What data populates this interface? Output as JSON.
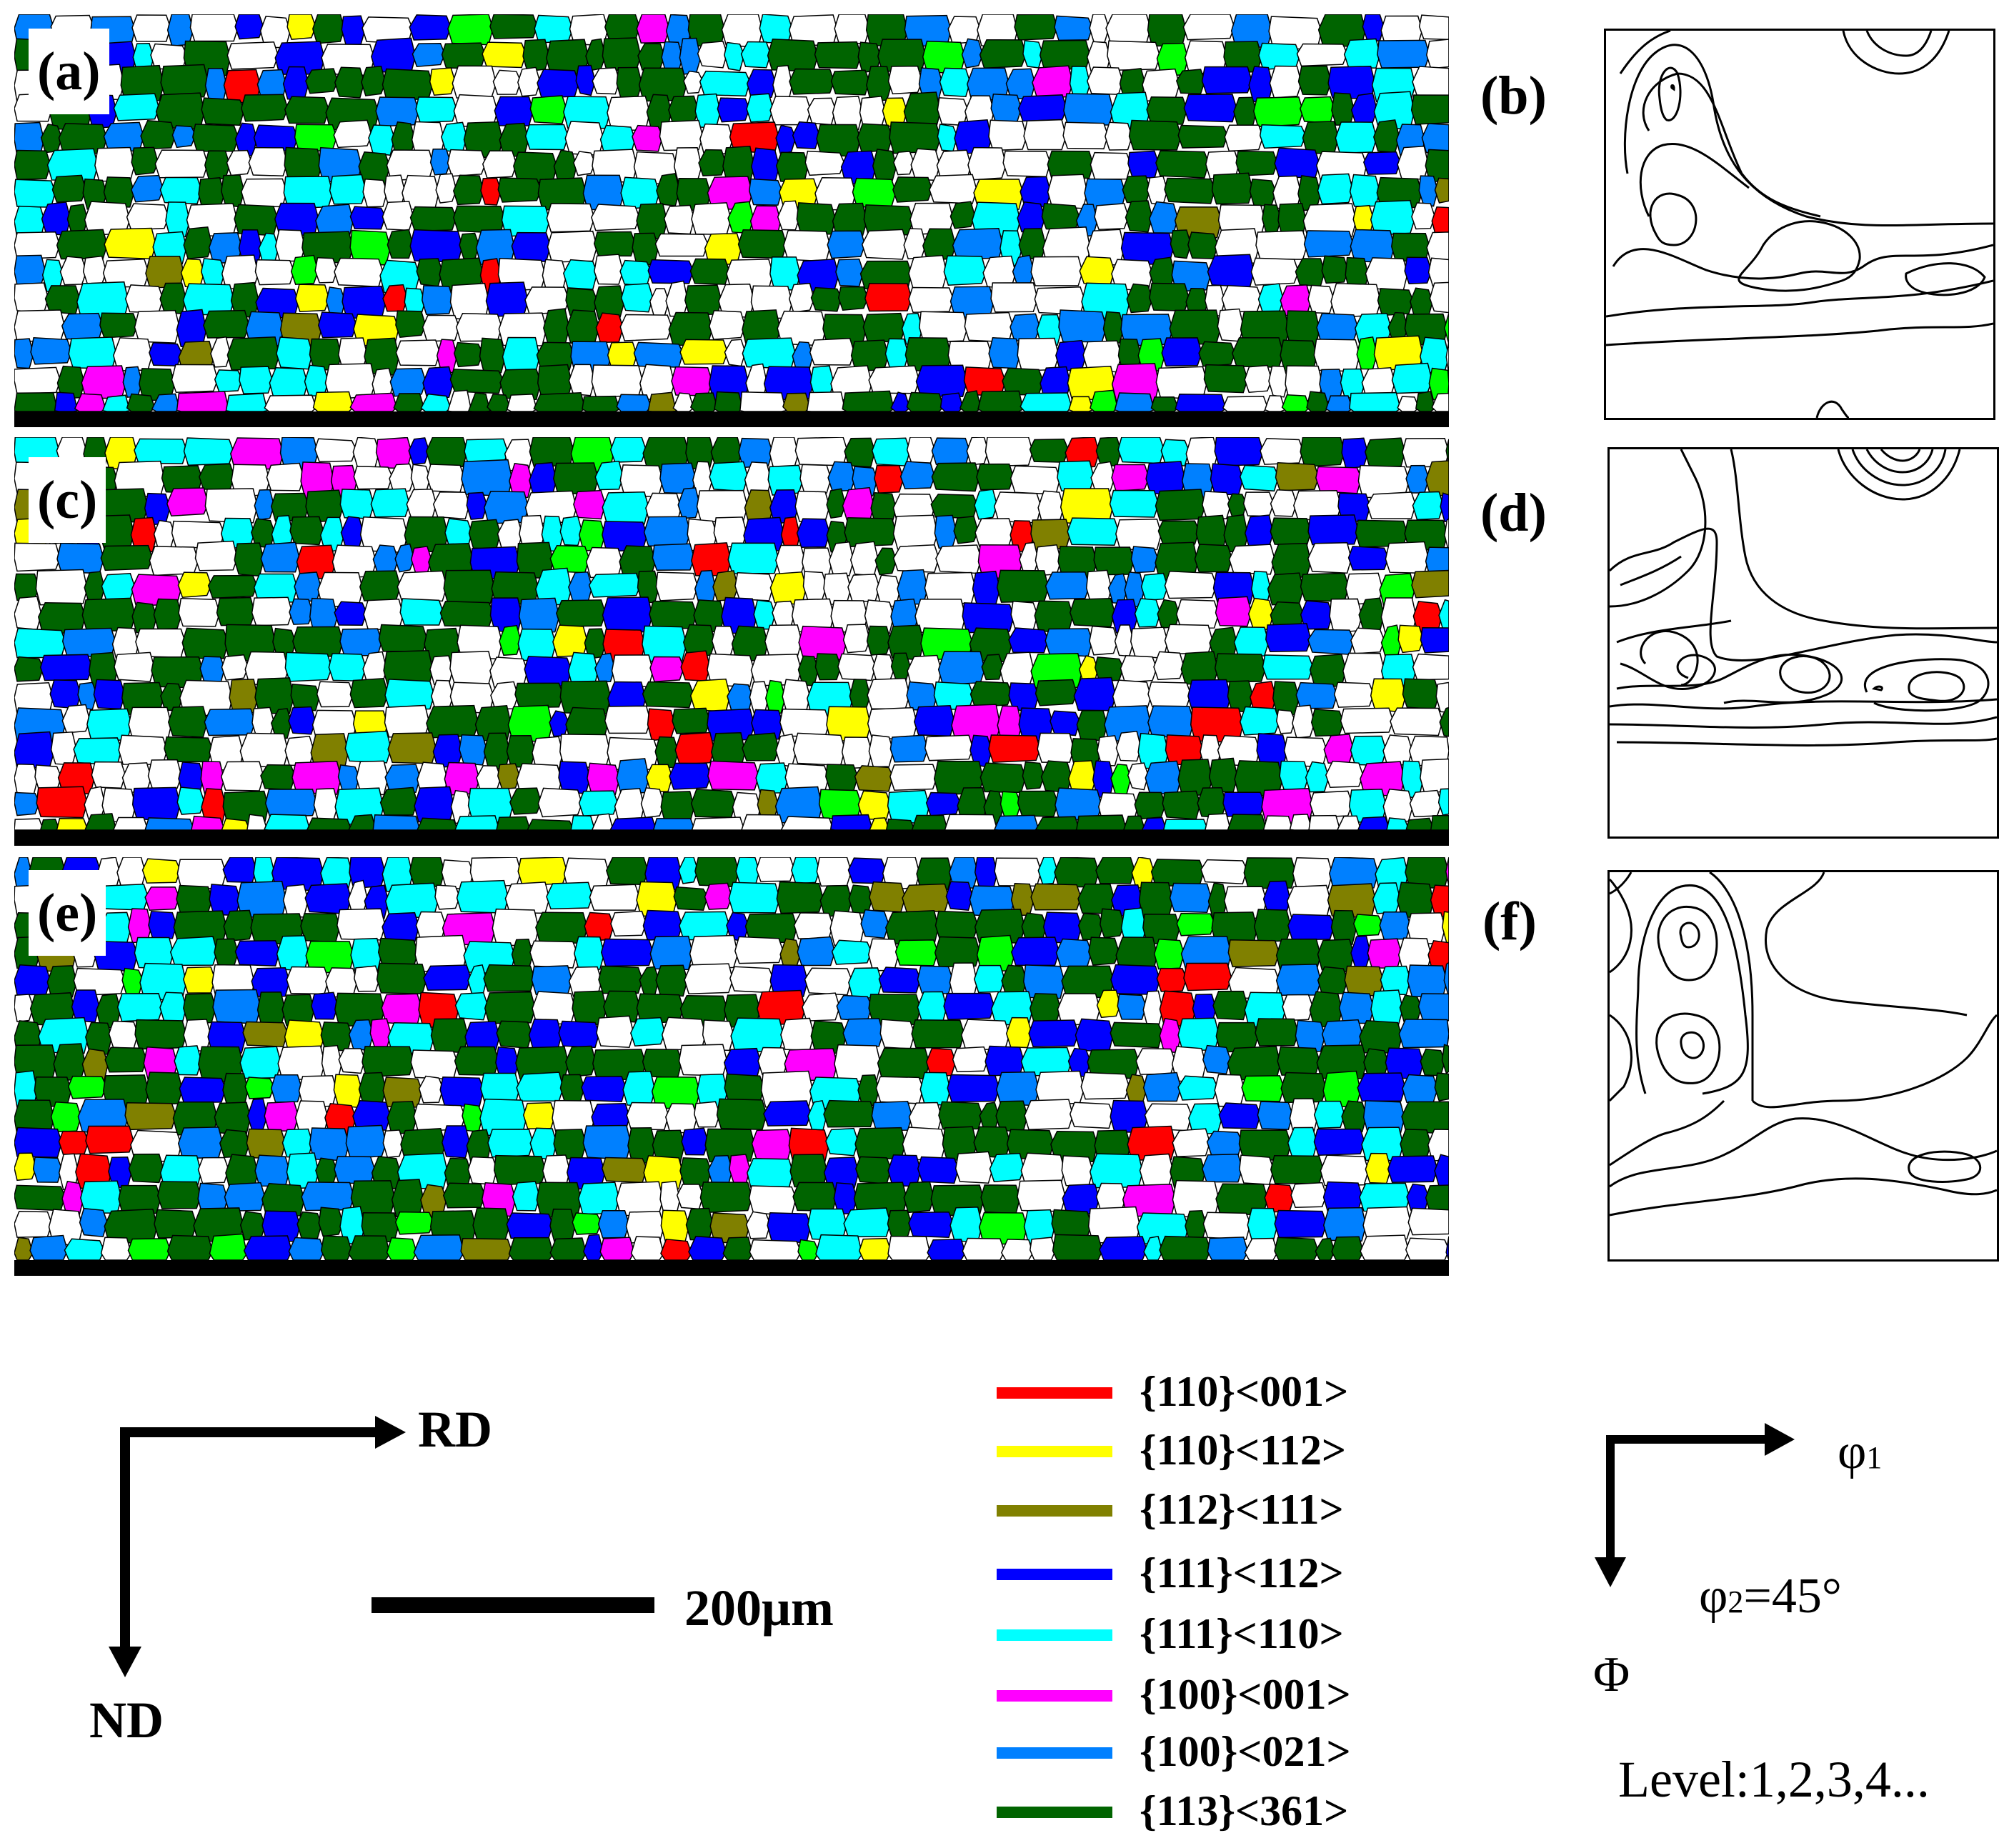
{
  "panels": {
    "a": "(a)",
    "b": "(b)",
    "c": "(c)",
    "d": "(d)",
    "e": "(e)",
    "f": "(f)"
  },
  "axes": {
    "rd": "RD",
    "nd": "ND"
  },
  "scale_bar": {
    "label": "200μm"
  },
  "legend": {
    "items": [
      {
        "label": "{110}<001>",
        "color": "#ff0000"
      },
      {
        "label": "{110}<112>",
        "color": "#ffff00"
      },
      {
        "label": "{112}<111>",
        "color": "#808000"
      },
      {
        "label": "{111}<112>",
        "color": "#0000ff"
      },
      {
        "label": "{111}<110>",
        "color": "#00ffff"
      },
      {
        "label": "{100}<001>",
        "color": "#ff00ff"
      },
      {
        "label": "{100}<021>",
        "color": "#0080ff"
      },
      {
        "label": "{113}<361>",
        "color": "#006400"
      }
    ]
  },
  "odf": {
    "phi1": "φ",
    "phi1_sub": "1",
    "Phi": "Φ",
    "phi2_prefix": "φ",
    "phi2_sub": "2",
    "phi2_value": "=45°",
    "levels": "Level:1,2,3,4..."
  },
  "grain_palette": [
    "#ffffff",
    "#006400",
    "#0000ff",
    "#00ffff",
    "#0080ff",
    "#ffff00",
    "#ff00ff",
    "#ff0000",
    "#808000",
    "#00ff00"
  ]
}
